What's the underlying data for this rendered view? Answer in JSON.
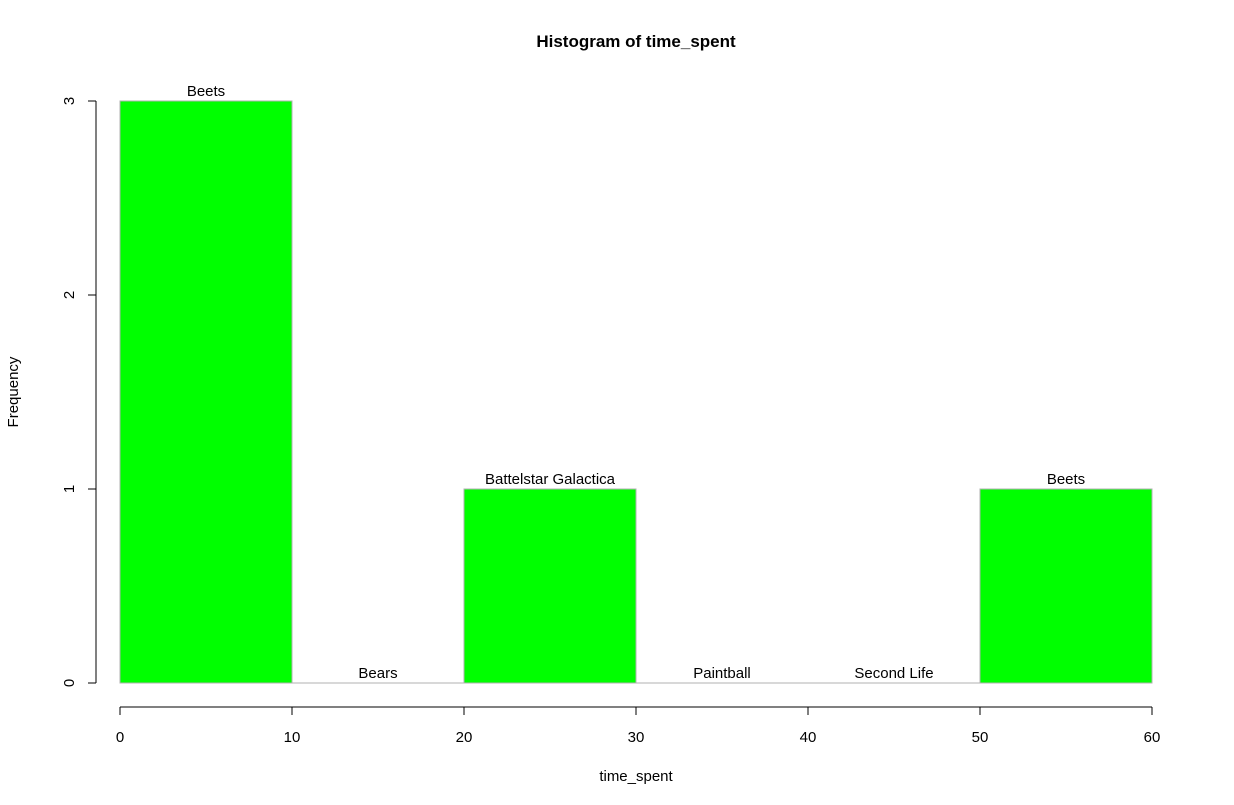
{
  "chart_data": {
    "type": "bar",
    "title": "Histogram of time_spent",
    "xlabel": "time_spent",
    "ylabel": "Frequency",
    "xlim": [
      0,
      60
    ],
    "ylim": [
      0,
      3
    ],
    "bins": [
      {
        "x0": 0,
        "x1": 10,
        "count": 3,
        "label": "Beets"
      },
      {
        "x0": 10,
        "x1": 20,
        "count": 0,
        "label": "Bears"
      },
      {
        "x0": 20,
        "x1": 30,
        "count": 1,
        "label": "Battelstar Galactica"
      },
      {
        "x0": 30,
        "x1": 40,
        "count": 0,
        "label": "Paintball"
      },
      {
        "x0": 40,
        "x1": 50,
        "count": 0,
        "label": "Second Life"
      },
      {
        "x0": 50,
        "x1": 60,
        "count": 1,
        "label": "Beets"
      }
    ],
    "x_ticks": [
      "0",
      "10",
      "20",
      "30",
      "40",
      "50",
      "60"
    ],
    "y_ticks": [
      "0",
      "1",
      "2",
      "3"
    ],
    "bar_color": "#00ff00",
    "bar_border_color": "#b0b0b0",
    "grid": false
  }
}
